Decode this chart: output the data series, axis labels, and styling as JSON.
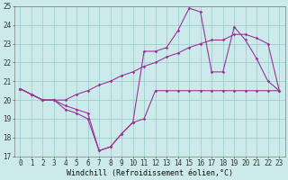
{
  "x_hours": [
    0,
    1,
    2,
    3,
    4,
    5,
    6,
    7,
    8,
    9,
    10,
    11,
    12,
    13,
    14,
    15,
    16,
    17,
    18,
    19,
    20,
    21,
    22,
    23
  ],
  "series1": [
    20.6,
    20.3,
    20.0,
    20.0,
    20.0,
    20.3,
    20.5,
    20.8,
    21.0,
    21.3,
    21.5,
    21.8,
    22.0,
    22.3,
    22.5,
    22.8,
    23.0,
    23.2,
    23.2,
    23.5,
    23.5,
    23.3,
    23.0,
    20.5
  ],
  "series2": [
    20.6,
    20.3,
    20.0,
    20.0,
    19.5,
    19.3,
    19.0,
    17.3,
    17.5,
    18.2,
    18.8,
    22.6,
    22.6,
    22.8,
    23.7,
    24.9,
    24.7,
    21.5,
    21.5,
    23.9,
    23.2,
    22.2,
    21.0,
    20.5
  ],
  "series3": [
    20.6,
    20.3,
    20.0,
    20.0,
    19.7,
    19.5,
    19.3,
    17.3,
    17.5,
    18.2,
    18.8,
    19.0,
    20.5,
    20.5,
    20.5,
    20.5,
    20.5,
    20.5,
    20.5,
    20.5,
    20.5,
    20.5,
    20.5,
    20.5
  ],
  "line_color": "#993399",
  "bg_color": "#cdeaea",
  "grid_color": "#9ecece",
  "xlabel": "Windchill (Refroidissement éolien,°C)",
  "ylim": [
    17,
    25
  ],
  "xlim_min": -0.5,
  "xlim_max": 23.5,
  "yticks": [
    17,
    18,
    19,
    20,
    21,
    22,
    23,
    24,
    25
  ],
  "xticks": [
    0,
    1,
    2,
    3,
    4,
    5,
    6,
    7,
    8,
    9,
    10,
    11,
    12,
    13,
    14,
    15,
    16,
    17,
    18,
    19,
    20,
    21,
    22,
    23
  ],
  "tick_fontsize": 5.5,
  "xlabel_fontsize": 6.0
}
